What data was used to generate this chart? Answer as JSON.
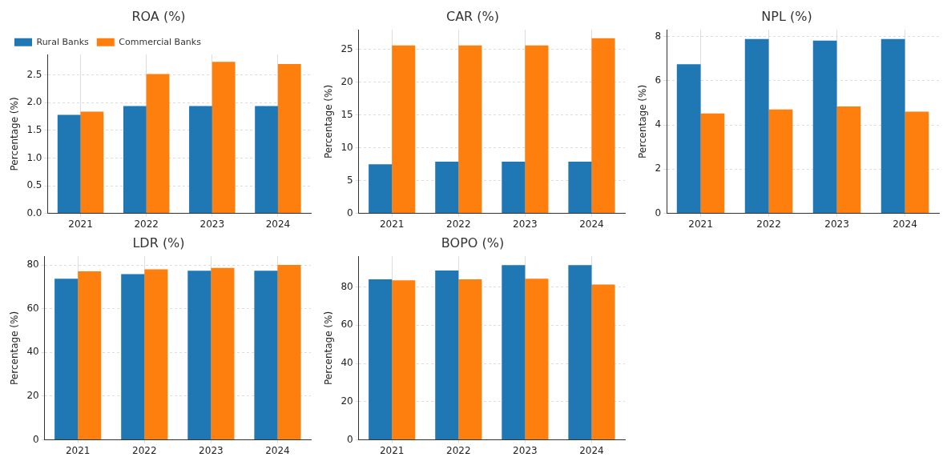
{
  "chart_data": [
    {
      "type": "bar",
      "title": "ROA (%)",
      "ylabel": "Percentage (%)",
      "categories": [
        "2021",
        "2022",
        "2023",
        "2024"
      ],
      "series": [
        {
          "name": "Rural Banks",
          "color": "#1f77b4",
          "values": [
            1.78,
            1.94,
            1.94,
            1.94
          ]
        },
        {
          "name": "Commercial Banks",
          "color": "#ff7f0e",
          "values": [
            1.84,
            2.52,
            2.74,
            2.7
          ]
        }
      ],
      "ylim": [
        0,
        2.87
      ],
      "yticks": [
        {
          "value": 0,
          "label": "0.0"
        },
        0.5,
        {
          "value": 1,
          "label": "1.0"
        },
        1.5,
        {
          "value": 2,
          "label": "2.0"
        },
        2.5
      ],
      "grid": true,
      "legend": "top left"
    },
    {
      "type": "bar",
      "title": "CAR (%)",
      "ylabel": "Percentage (%)",
      "categories": [
        "2021",
        "2022",
        "2023",
        "2024"
      ],
      "series": [
        {
          "color": "#1f77b4",
          "values": [
            7.5,
            7.9,
            7.9,
            7.9
          ]
        },
        {
          "color": "#ff7f0e",
          "values": [
            25.6,
            25.6,
            25.6,
            26.7
          ]
        }
      ],
      "ylim": [
        0,
        28
      ],
      "yticks": [
        0,
        5,
        10,
        15,
        20,
        25
      ],
      "grid": true
    },
    {
      "type": "bar",
      "title": "NPL (%)",
      "ylabel": "Percentage (%)",
      "categories": [
        "2021",
        "2022",
        "2023",
        "2024"
      ],
      "series": [
        {
          "color": "#1f77b4",
          "values": [
            6.74,
            7.88,
            7.81,
            7.88
          ]
        },
        {
          "color": "#ff7f0e",
          "values": [
            4.52,
            4.7,
            4.83,
            4.6
          ]
        }
      ],
      "ylim": [
        0,
        8.3
      ],
      "yticks": [
        0,
        2,
        4,
        6,
        8
      ],
      "grid": true
    },
    {
      "type": "bar",
      "title": "LDR (%)",
      "ylabel": "Percentage (%)",
      "categories": [
        "2021",
        "2022",
        "2023",
        "2024"
      ],
      "series": [
        {
          "color": "#1f77b4",
          "values": [
            73.7,
            75.8,
            77.4,
            77.4
          ]
        },
        {
          "color": "#ff7f0e",
          "values": [
            77.1,
            78,
            78.7,
            80
          ]
        }
      ],
      "ylim": [
        0,
        84
      ],
      "yticks": [
        0,
        20,
        40,
        60,
        80
      ],
      "grid": true
    },
    {
      "type": "bar",
      "title": "BOPO (%)",
      "ylabel": "Percentage (%)",
      "categories": [
        "2021",
        "2022",
        "2023",
        "2024"
      ],
      "series": [
        {
          "color": "#1f77b4",
          "values": [
            84,
            88.5,
            91.4,
            91.4
          ]
        },
        {
          "color": "#ff7f0e",
          "values": [
            83.4,
            84,
            84.3,
            81.2
          ]
        }
      ],
      "ylim": [
        0,
        96
      ],
      "yticks": [
        0,
        20,
        40,
        60,
        80
      ],
      "grid": true
    }
  ]
}
